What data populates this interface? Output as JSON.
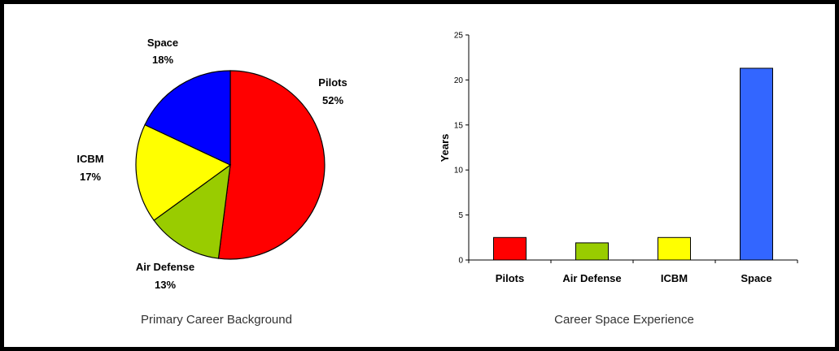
{
  "chart_data": [
    {
      "type": "pie",
      "caption": "Primary Career Background",
      "slices": [
        {
          "label": "Pilots",
          "pct_label": "52%",
          "value": 52,
          "color": "#ff0000"
        },
        {
          "label": "Air Defense",
          "pct_label": "13%",
          "value": 13,
          "color": "#99cc00"
        },
        {
          "label": "ICBM",
          "pct_label": "17%",
          "value": 17,
          "color": "#ffff00"
        },
        {
          "label": "Space",
          "pct_label": "18%",
          "value": 18,
          "color": "#0000ff"
        }
      ]
    },
    {
      "type": "bar",
      "caption": "Career Space Experience",
      "ylabel": "Years",
      "ylim": [
        0,
        25
      ],
      "yticks": [
        0,
        5,
        10,
        15,
        20,
        25
      ],
      "categories": [
        "Pilots",
        "Air Defense",
        "ICBM",
        "Space"
      ],
      "values": [
        2.5,
        1.9,
        2.5,
        21.3
      ],
      "colors": [
        "#ff0000",
        "#99cc00",
        "#ffff00",
        "#3366ff"
      ]
    }
  ]
}
